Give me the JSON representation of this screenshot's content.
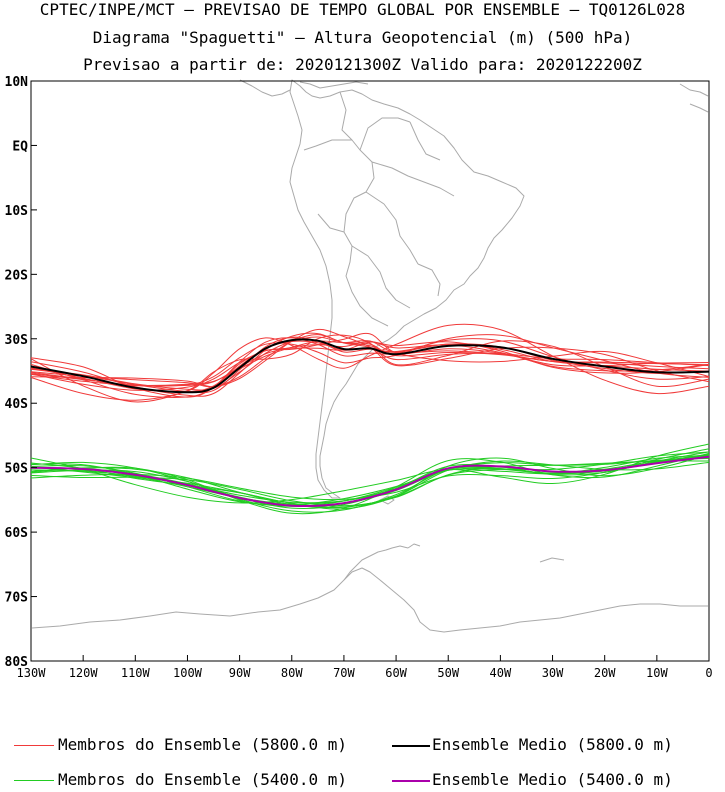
{
  "header": {
    "line1": "CPTEC/INPE/MCT – PREVISAO DE TEMPO GLOBAL POR ENSEMBLE – TQ0126L028",
    "line2": "Diagrama \"Spaguetti\" – Altura Geopotencial (m) (500 hPa)",
    "line3": "Previsao a partir de: 2020121300Z  Valido para: 2020122200Z"
  },
  "axes": {
    "lat_ticks": [
      "10N",
      "EQ",
      "10S",
      "20S",
      "30S",
      "40S",
      "50S",
      "60S",
      "70S",
      "80S"
    ],
    "lat_values": [
      10,
      0,
      -10,
      -20,
      -30,
      -40,
      -50,
      -60,
      -70,
      -80
    ],
    "lon_ticks": [
      "130W",
      "120W",
      "110W",
      "100W",
      "90W",
      "80W",
      "70W",
      "60W",
      "50W",
      "40W",
      "30W",
      "20W",
      "10W",
      "0"
    ],
    "lon_values": [
      -130,
      -120,
      -110,
      -100,
      -90,
      -80,
      -70,
      -60,
      -50,
      -40,
      -30,
      -20,
      -10,
      0
    ],
    "lon_range": [
      -130,
      0
    ],
    "lat_range": [
      -80,
      10
    ]
  },
  "legend": {
    "members_5800": "Membros do Ensemble (5800.0 m)",
    "mean_5800": "Ensemble Medio (5800.0 m)",
    "members_5400": "Membros do Ensemble (5400.0 m)",
    "mean_5400": "Ensemble Medio (5400.0 m)"
  },
  "colors": {
    "members_5800": "#f03a3a",
    "mean_5800": "#000000",
    "members_5400": "#22cc22",
    "mean_5400": "#aa00aa",
    "coast": "#aaaaaa"
  },
  "chart_data": {
    "type": "line",
    "series": [
      {
        "name": "Ensemble Medio (5800.0 m)",
        "lon": [
          -130,
          -120,
          -110,
          -100,
          -95,
          -90,
          -85,
          -80,
          -75,
          -70,
          -65,
          -60,
          -50,
          -40,
          -30,
          -20,
          -10,
          0
        ],
        "lat": [
          -34.3,
          -35.8,
          -37.6,
          -38.3,
          -37.6,
          -34.5,
          -31.5,
          -30.2,
          -30.3,
          -31.6,
          -31.5,
          -32.4,
          -31.1,
          -31.3,
          -33.1,
          -34.3,
          -35.2,
          -35.1
        ]
      },
      {
        "name": "Ensemble Medio (5400.0 m)",
        "lon": [
          -130,
          -120,
          -110,
          -100,
          -90,
          -80,
          -70,
          -60,
          -50,
          -40,
          -30,
          -20,
          -10,
          0
        ],
        "lat": [
          -50.0,
          -50.2,
          -51.1,
          -52.7,
          -54.7,
          -55.9,
          -55.5,
          -53.4,
          -50.1,
          -49.8,
          -50.6,
          -50.4,
          -49.3,
          -48.3
        ]
      }
    ]
  }
}
